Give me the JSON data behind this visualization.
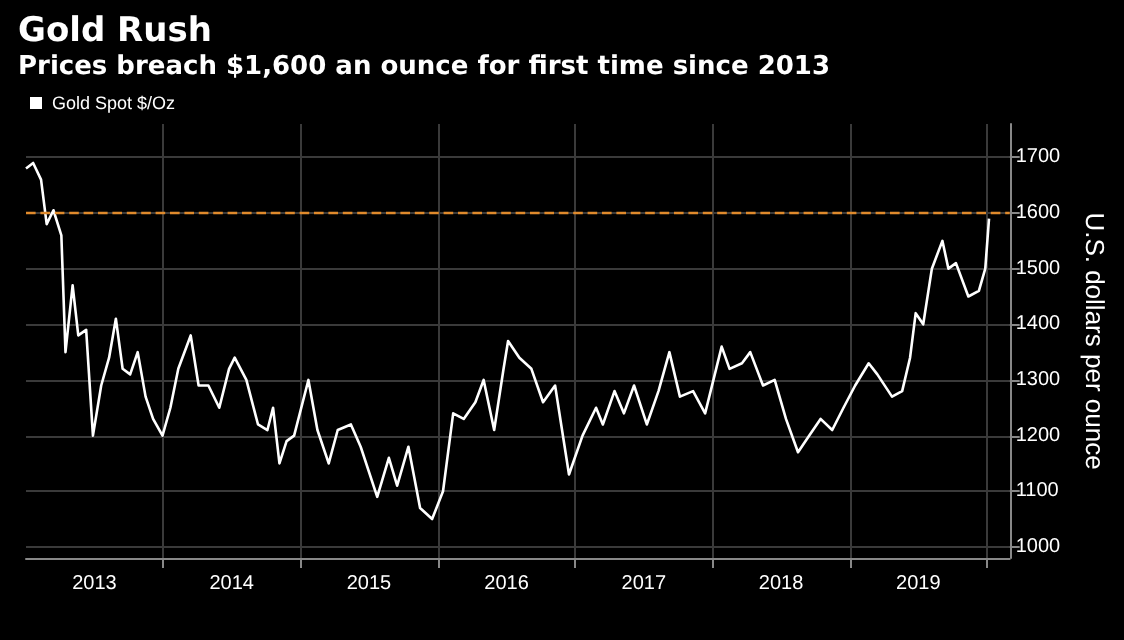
{
  "chart_data": {
    "type": "line",
    "title": "Gold Rush",
    "subtitle": "Prices breach $1,600 an ounce for first time since 2013",
    "ylabel": "U.S. dollars per ounce",
    "x": [
      "2013-01-01",
      "2013-01-20",
      "2013-02-10",
      "2013-02-25",
      "2013-03-15",
      "2013-04-05",
      "2013-04-16",
      "2013-05-05",
      "2013-05-20",
      "2013-06-10",
      "2013-06-28",
      "2013-07-20",
      "2013-08-10",
      "2013-08-28",
      "2013-09-15",
      "2013-10-05",
      "2013-10-25",
      "2013-11-15",
      "2013-12-05",
      "2013-12-30",
      "2014-01-20",
      "2014-02-10",
      "2014-03-15",
      "2014-04-05",
      "2014-05-01",
      "2014-05-30",
      "2014-06-25",
      "2014-07-10",
      "2014-08-10",
      "2014-09-10",
      "2014-10-05",
      "2014-10-20",
      "2014-11-06",
      "2014-11-25",
      "2014-12-15",
      "2015-01-22",
      "2015-02-15",
      "2015-03-17",
      "2015-04-10",
      "2015-05-15",
      "2015-06-10",
      "2015-07-24",
      "2015-08-24",
      "2015-09-15",
      "2015-10-15",
      "2015-11-15",
      "2015-12-17",
      "2016-01-15",
      "2016-02-11",
      "2016-03-10",
      "2016-04-10",
      "2016-05-02",
      "2016-05-30",
      "2016-06-24",
      "2016-07-06",
      "2016-08-05",
      "2016-09-06",
      "2016-10-07",
      "2016-11-08",
      "2016-12-15",
      "2017-01-20",
      "2017-02-25",
      "2017-03-15",
      "2017-04-15",
      "2017-05-10",
      "2017-06-06",
      "2017-07-10",
      "2017-08-10",
      "2017-09-08",
      "2017-10-06",
      "2017-11-10",
      "2017-12-12",
      "2018-01-25",
      "2018-02-15",
      "2018-03-20",
      "2018-04-11",
      "2018-05-15",
      "2018-06-15",
      "2018-07-15",
      "2018-08-16",
      "2018-09-15",
      "2018-10-15",
      "2018-11-15",
      "2018-12-15",
      "2019-01-15",
      "2019-02-20",
      "2019-03-15",
      "2019-04-23",
      "2019-05-20",
      "2019-06-10",
      "2019-06-25",
      "2019-07-15",
      "2019-08-07",
      "2019-09-04",
      "2019-09-20",
      "2019-10-10",
      "2019-11-12",
      "2019-12-10",
      "2019-12-27",
      "2020-01-06"
    ],
    "series": [
      {
        "name": "Gold Spot $/Oz",
        "color": "#ffffff",
        "values": [
          1680,
          1690,
          1660,
          1580,
          1605,
          1560,
          1350,
          1470,
          1380,
          1390,
          1200,
          1290,
          1340,
          1410,
          1320,
          1310,
          1350,
          1270,
          1230,
          1200,
          1250,
          1320,
          1380,
          1290,
          1290,
          1250,
          1320,
          1340,
          1300,
          1220,
          1210,
          1250,
          1150,
          1190,
          1200,
          1300,
          1210,
          1150,
          1210,
          1220,
          1180,
          1090,
          1160,
          1110,
          1180,
          1070,
          1050,
          1100,
          1240,
          1230,
          1260,
          1300,
          1210,
          1320,
          1370,
          1340,
          1320,
          1260,
          1290,
          1130,
          1200,
          1250,
          1220,
          1280,
          1240,
          1290,
          1220,
          1280,
          1350,
          1270,
          1280,
          1240,
          1360,
          1320,
          1330,
          1350,
          1290,
          1300,
          1230,
          1170,
          1200,
          1230,
          1210,
          1250,
          1290,
          1330,
          1310,
          1270,
          1280,
          1340,
          1420,
          1400,
          1500,
          1550,
          1500,
          1510,
          1450,
          1460,
          1500,
          1590
        ]
      }
    ],
    "ylim": [
      980,
      1760
    ],
    "yticks": [
      1000,
      1100,
      1200,
      1300,
      1400,
      1500,
      1600,
      1700
    ],
    "xlim": [
      "2013-01-01",
      "2020-03-01"
    ],
    "xticks": [
      {
        "value": "2014-01-01",
        "label": null
      },
      {
        "value": "2015-01-01",
        "label": null
      },
      {
        "value": "2016-01-01",
        "label": null
      },
      {
        "value": "2017-01-01",
        "label": null
      },
      {
        "value": "2018-01-01",
        "label": null
      },
      {
        "value": "2019-01-01",
        "label": null
      },
      {
        "value": "2020-01-01",
        "label": null
      },
      {
        "value": "2013-07-02",
        "label": "2013"
      },
      {
        "value": "2014-07-02",
        "label": "2014"
      },
      {
        "value": "2015-07-02",
        "label": "2015"
      },
      {
        "value": "2016-07-02",
        "label": "2016"
      },
      {
        "value": "2017-07-02",
        "label": "2017"
      },
      {
        "value": "2018-07-02",
        "label": "2018"
      },
      {
        "value": "2019-07-02",
        "label": "2019"
      }
    ],
    "ref_lines": [
      {
        "axis": "y",
        "value": 1600,
        "color": "#e08a2c",
        "line_style": "dashed"
      }
    ],
    "grid": true,
    "legend": "top left",
    "marker": "none",
    "line_style": "solid"
  }
}
